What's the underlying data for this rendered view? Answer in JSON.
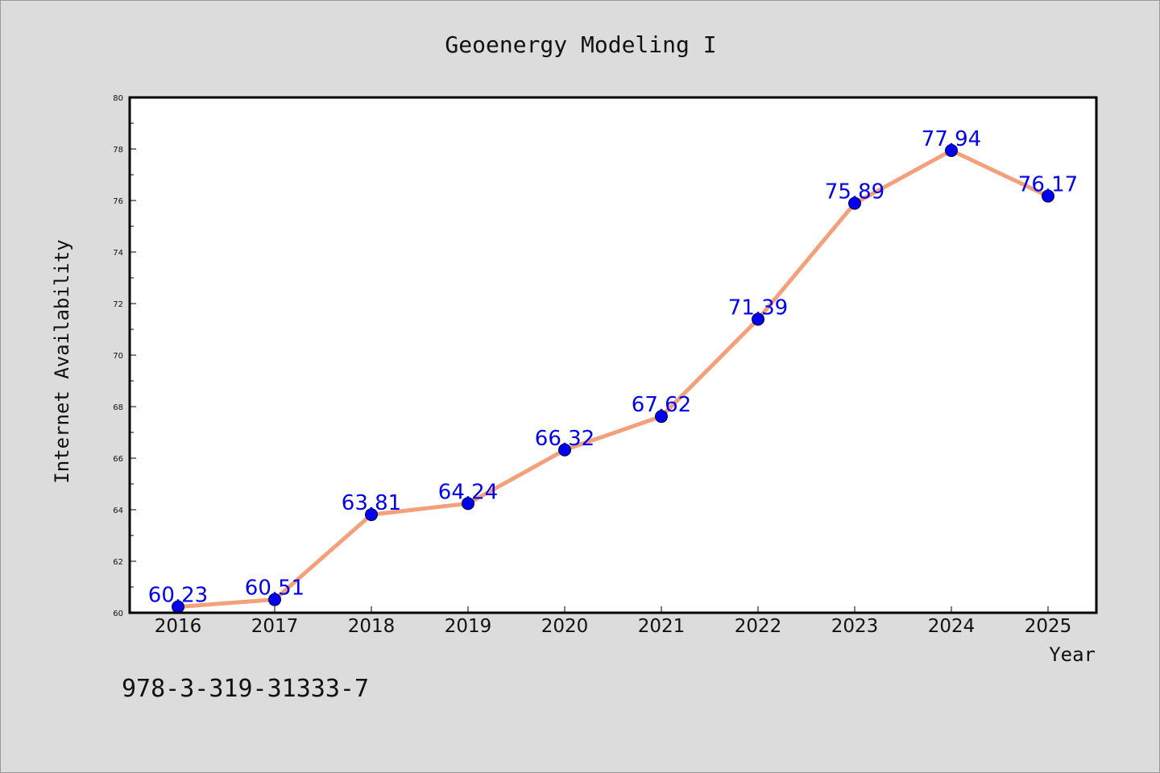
{
  "chart_data": {
    "type": "line",
    "title": "Geoenergy Modeling I",
    "xlabel": "Year",
    "ylabel": "Internet Availability",
    "categories": [
      "2016",
      "2017",
      "2018",
      "2019",
      "2020",
      "2021",
      "2022",
      "2023",
      "2024",
      "2025"
    ],
    "series": [
      {
        "values": [
          60.23,
          60.51,
          63.81,
          64.24,
          66.32,
          67.62,
          71.39,
          75.89,
          77.94,
          76.17
        ],
        "labels": [
          "60.23",
          "60.51",
          "63.81",
          "64.24",
          "66.32",
          "67.62",
          "71.39",
          "75.89",
          "77.94",
          "76.17"
        ]
      }
    ],
    "ylim": [
      60,
      80
    ],
    "yticks": [
      "60",
      "62",
      "64",
      "66",
      "68",
      "70",
      "72",
      "74",
      "76",
      "78",
      "80"
    ],
    "grid": false,
    "legend": "none",
    "colors": {
      "line": "#f4a07a",
      "marker": "#0000ee",
      "data_label": "#0000ee",
      "background": "#dcdcdc",
      "plot_background": "#ffffff"
    }
  },
  "footer": {
    "isbn": "978-3-319-31333-7"
  }
}
